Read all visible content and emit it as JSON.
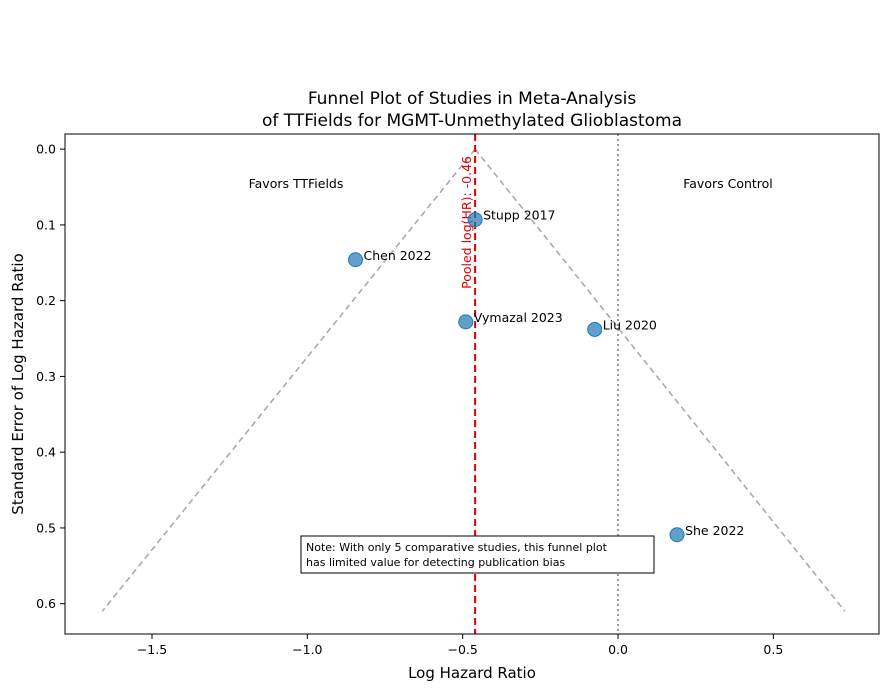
{
  "chart_data": {
    "type": "scatter",
    "title": [
      "Funnel Plot of Studies in Meta-Analysis",
      "of TTFields for MGMT-Unmethylated Glioblastoma"
    ],
    "xlabel": "Log Hazard Ratio",
    "ylabel": "Standard Error of Log Hazard Ratio",
    "xlim": [
      -1.78,
      0.84
    ],
    "ylim": [
      0.64,
      -0.02
    ],
    "y_inverted": true,
    "xticks": [
      -1.5,
      -1.0,
      -0.5,
      0.0,
      0.5
    ],
    "xtick_labels": [
      "−1.5",
      "−1.0",
      "−0.5",
      "0.0",
      "0.5"
    ],
    "yticks": [
      0.0,
      0.1,
      0.2,
      0.3,
      0.4,
      0.5,
      0.6
    ],
    "ytick_labels": [
      "0.0",
      "0.1",
      "0.2",
      "0.3",
      "0.4",
      "0.5",
      "0.6"
    ],
    "points": [
      {
        "label": "Stupp 2017",
        "x": -0.46,
        "y": 0.093
      },
      {
        "label": "Chen 2022",
        "x": -0.845,
        "y": 0.146
      },
      {
        "label": "Vymazal 2023",
        "x": -0.49,
        "y": 0.228
      },
      {
        "label": "Liu 2020",
        "x": -0.075,
        "y": 0.238
      },
      {
        "label": "She 2022",
        "x": 0.19,
        "y": 0.509
      }
    ],
    "point_color": "#1f77b4",
    "pooled": {
      "value": -0.46,
      "label": "Pooled log(HR): -0.46",
      "color": "#e00000"
    },
    "null_line": {
      "value": 0.0,
      "color": "#808080"
    },
    "funnel": {
      "apex": [
        -0.46,
        0.0
      ],
      "left_end": [
        -1.66,
        0.61
      ],
      "right_end": [
        0.73,
        0.61
      ],
      "color": "#aaaaaa"
    },
    "annotations": {
      "left": "Favors TTFields",
      "right": "Favors Control"
    },
    "note": [
      "Note: With only 5 comparative studies, this funnel plot",
      "has limited value for detecting publication bias"
    ]
  }
}
